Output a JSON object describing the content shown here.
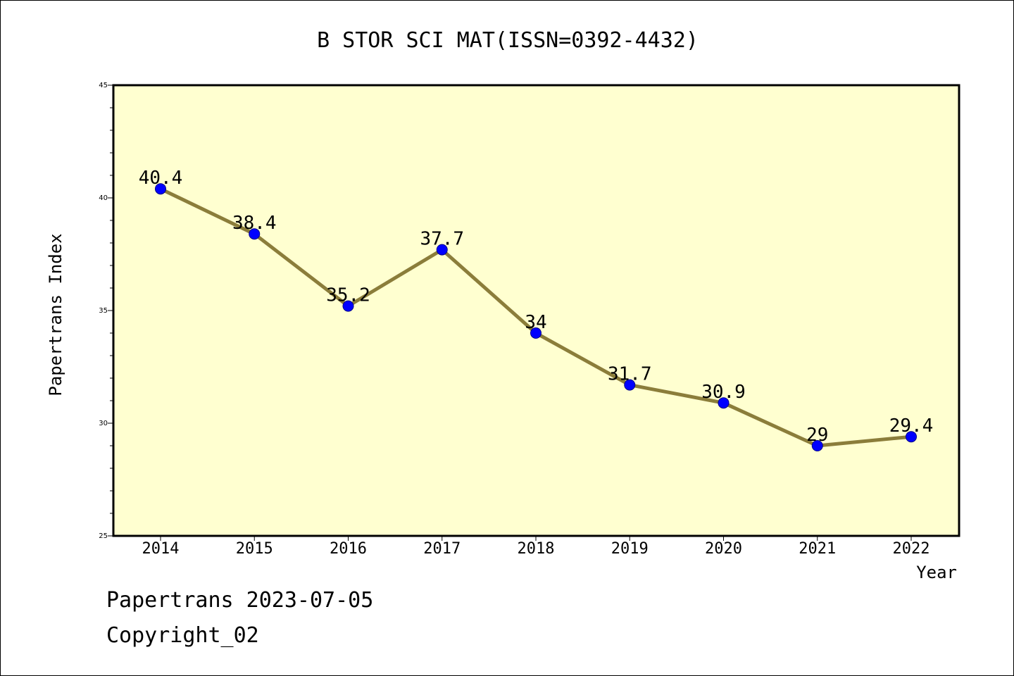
{
  "chart_data": {
    "type": "line",
    "title": "B STOR SCI MAT(ISSN=0392-4432)",
    "xlabel": "Year",
    "ylabel": "Papertrans Index",
    "categories": [
      "2014",
      "2015",
      "2016",
      "2017",
      "2018",
      "2019",
      "2020",
      "2021",
      "2022"
    ],
    "series": [
      {
        "values": [
          40.4,
          38.4,
          35.2,
          37.7,
          34,
          31.7,
          30.9,
          29,
          29.4
        ],
        "data_labels": [
          "40.4",
          "38.4",
          "35.2",
          "37.7",
          "34",
          "31.7",
          "30.9",
          "29",
          "29.4"
        ]
      }
    ],
    "ylim": [
      25,
      45
    ],
    "y_ticks": [
      25,
      30,
      35,
      40,
      45
    ],
    "y_tick_labels": [
      "25",
      "30",
      "35",
      "40",
      "45"
    ],
    "grid": false,
    "colors": {
      "plot_background": "#ffffd0",
      "line": "#8b7d3a",
      "marker": "#0000ff"
    }
  },
  "footer": {
    "line1": "Papertrans 2023-07-05",
    "line2": "Copyright_02"
  }
}
